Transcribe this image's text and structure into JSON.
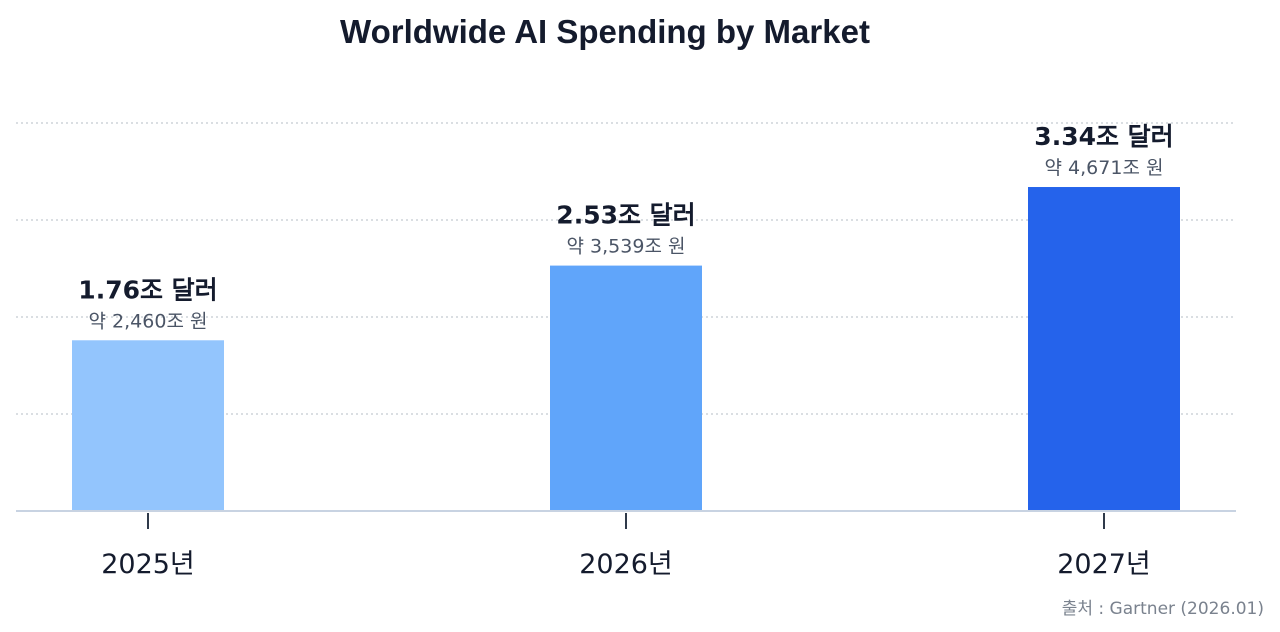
{
  "chart_data": {
    "type": "bar",
    "title": "Worldwide AI Spending by Market",
    "categories": [
      "2025년",
      "2026년",
      "2027년"
    ],
    "values": [
      1.76,
      2.53,
      3.34
    ],
    "value_labels": [
      "1.76조 달러",
      "2.53조 달러",
      "3.34조 달러"
    ],
    "sub_labels": [
      "약 2,460조 원",
      "약 3,539조 원",
      "약 4,671조 원"
    ],
    "bar_colors": [
      "#93c5fd",
      "#60a5fa",
      "#2563eb"
    ],
    "ylim": [
      0,
      4
    ],
    "grid": true,
    "source": "출처 : Gartner (2026.01)"
  }
}
